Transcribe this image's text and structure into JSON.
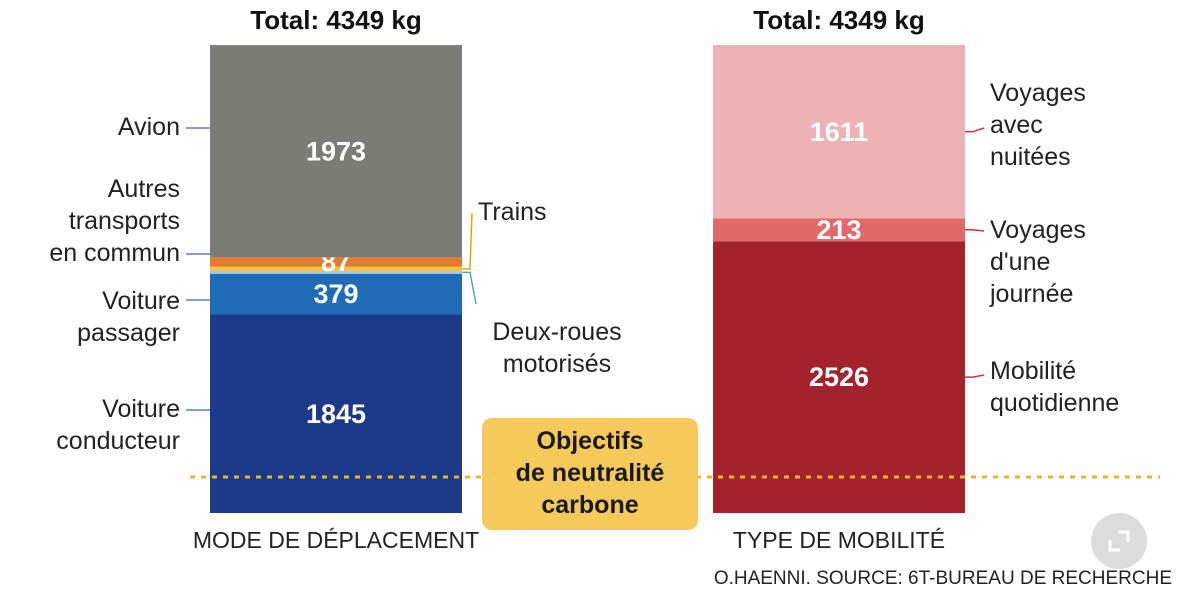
{
  "chart_data": [
    {
      "type": "stacked_bar",
      "title": "Total: 4349 kg",
      "xlabel": "MODE DE DÉPLACEMENT",
      "ylim": [
        0,
        4350
      ],
      "segments": [
        {
          "name": "Voiture\nconducteur",
          "color": "#1d3a8a",
          "value": 1845
        },
        {
          "name": "Voiture\npassager",
          "color": "#1f6bb6",
          "value": 379
        },
        {
          "name": "Deux-roues\nmotorisés",
          "color": "#9cc9e8",
          "value": 25,
          "label": false
        },
        {
          "name": "Trains",
          "color": "#f4c445",
          "value": 40,
          "label": false
        },
        {
          "name": "Autres\ntransports\nen commun",
          "color": "#e67a2c",
          "value": 87
        },
        {
          "name": "Avion",
          "color": "#7b7c76",
          "value": 1973
        }
      ]
    },
    {
      "type": "stacked_bar",
      "title": "Total: 4349 kg",
      "xlabel": "TYPE DE MOBILITÉ",
      "ylim": [
        0,
        4350
      ],
      "segments": [
        {
          "name": "Mobilité\nquotidienne",
          "color": "#a3222b",
          "value": 2526
        },
        {
          "name": "Voyages\nd'une\njournée",
          "color": "#df6a69",
          "value": 213
        },
        {
          "name": "Voyages\navec\nnuitées",
          "color": "#efb2b4",
          "value": 1611
        }
      ]
    }
  ],
  "target": {
    "text": "Objectifs\nde neutralité\ncarbone",
    "value": 335
  },
  "source": "O.HAENNI. SOURCE: 6T-BUREAU DE RECHERCHE"
}
